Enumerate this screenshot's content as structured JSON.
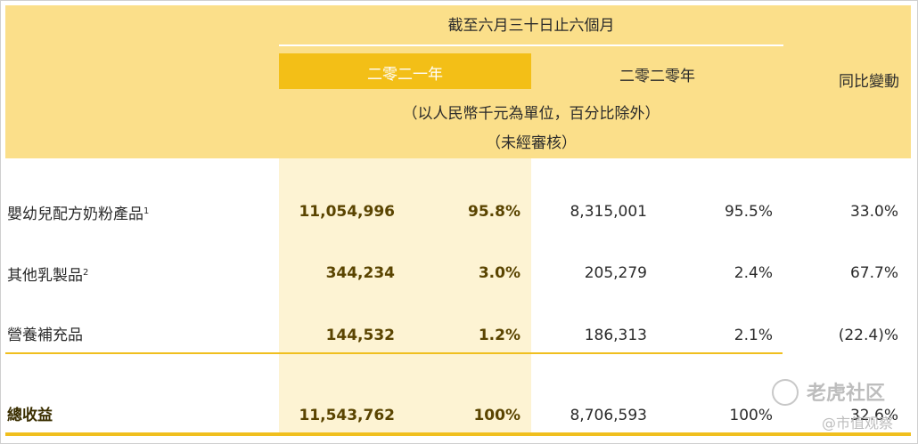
{
  "header": {
    "period": "截至六月三十日止六個月",
    "year_2021": "二零二一年",
    "year_2020": "二零二零年",
    "change": "同比變動",
    "unit": "（以人民幣千元為單位，百分比除外）",
    "unaudited": "（未經審核）"
  },
  "rows": [
    {
      "label": "嬰幼兒配方奶粉產品",
      "sup": "1",
      "v2021": "11,054,996",
      "p2021": "95.8%",
      "v2020": "8,315,001",
      "p2020": "95.5%",
      "change": "33.0%"
    },
    {
      "label": "其他乳製品",
      "sup": "2",
      "v2021": "344,234",
      "p2021": "3.0%",
      "v2020": "205,279",
      "p2020": "2.4%",
      "change": "67.7%"
    },
    {
      "label": "營養補充品",
      "sup": "",
      "v2021": "144,532",
      "p2021": "1.2%",
      "v2020": "186,313",
      "p2020": "2.1%",
      "change": "(22.4)%"
    }
  ],
  "total": {
    "label": "總收益",
    "v2021": "11,543,762",
    "p2021": "100%",
    "v2020": "8,706,593",
    "p2020": "100%",
    "change": "32.6%"
  },
  "watermark": {
    "brand": "老虎社区",
    "handle": "@市值观察"
  },
  "colors": {
    "header_band": "#fbdf8a",
    "year_2021_header": "#f3bf17",
    "year_2021_column": "#fdf3d3",
    "rule": "#f0bf1e"
  }
}
